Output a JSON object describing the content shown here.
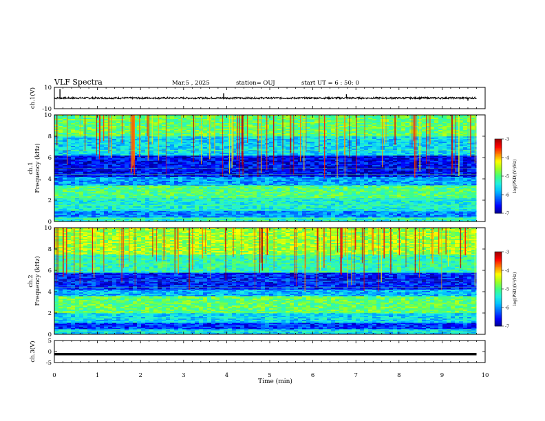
{
  "header": {
    "title": "VLF Spectra",
    "date": "Mar.5 , 2025",
    "station": "station= OUJ",
    "start": "start UT = 6 : 50: 0"
  },
  "colors": {
    "colormap": [
      "#00008f",
      "#0000ff",
      "#0060ff",
      "#00c0ff",
      "#20f0e0",
      "#40ff80",
      "#a0ff20",
      "#ffff00",
      "#ff8000",
      "#ff0000",
      "#a00000"
    ],
    "trace": "#000000",
    "background": "#ffffff"
  },
  "chart_data": [
    {
      "name": "ch1-waveform",
      "type": "line",
      "ylabel": "ch.1(V)",
      "ylim": [
        -10,
        10
      ],
      "y_ticklabels": [
        "10",
        "-10"
      ],
      "xlim": [
        0,
        10
      ],
      "baseline": 0,
      "x": [
        0.0,
        0.13,
        0.4,
        1.0,
        1.6,
        2.2,
        2.8,
        3.4,
        3.93,
        4.2,
        4.8,
        5.4,
        6.0,
        6.6,
        6.78,
        7.2,
        7.8,
        8.4,
        9.0,
        9.6,
        9.8
      ],
      "y": [
        0.0,
        8.5,
        -1.0,
        0.5,
        -0.8,
        0.6,
        -0.5,
        0.7,
        4.5,
        -0.6,
        0.5,
        -0.7,
        0.6,
        -0.4,
        3.5,
        0.5,
        -0.6,
        0.4,
        -0.5,
        -2.5,
        0.0
      ]
    },
    {
      "name": "ch1-spectrogram",
      "type": "heatmap",
      "ylabel": "ch.1\nFrequency (kHz)",
      "ylim": [
        0,
        10
      ],
      "xlim": [
        0,
        9.8
      ],
      "y_ticklabels": [
        "0",
        "2",
        "4",
        "6",
        "8",
        "10"
      ],
      "colorbar_label": "log(PSD)(V²/Hz)",
      "colorbar_range": [
        -7,
        -3
      ],
      "colorbar_ticklabels": [
        "-7",
        "-6",
        "-5",
        "-4",
        "-3"
      ],
      "freq_bands_khz": [
        {
          "from": 0,
          "to": 0.4,
          "log_psd": -5.3
        },
        {
          "from": 0.4,
          "to": 1.0,
          "log_psd": -6.0
        },
        {
          "from": 1.0,
          "to": 2.2,
          "log_psd": -5.4
        },
        {
          "from": 2.2,
          "to": 3.4,
          "log_psd": -5.0
        },
        {
          "from": 3.4,
          "to": 4.2,
          "log_psd": -5.9
        },
        {
          "from": 4.2,
          "to": 6.2,
          "log_psd": -6.6
        },
        {
          "from": 6.2,
          "to": 8.0,
          "log_psd": -5.6
        },
        {
          "from": 8.0,
          "to": 10.0,
          "log_psd": -4.9
        }
      ]
    },
    {
      "name": "ch2-spectrogram",
      "type": "heatmap",
      "ylabel": "ch.2\nFrequency (kHz)",
      "ylim": [
        0,
        10
      ],
      "xlim": [
        0,
        9.8
      ],
      "y_ticklabels": [
        "0",
        "2",
        "4",
        "6",
        "8",
        "10"
      ],
      "colorbar_label": "log(PSD)(V²/Hz)",
      "colorbar_range": [
        -7,
        -3
      ],
      "colorbar_ticklabels": [
        "-7",
        "-6",
        "-5",
        "-4",
        "-3"
      ],
      "freq_bands_khz": [
        {
          "from": 0,
          "to": 0.5,
          "log_psd": -5.6
        },
        {
          "from": 0.5,
          "to": 1.1,
          "log_psd": -6.4
        },
        {
          "from": 1.1,
          "to": 2.0,
          "log_psd": -5.6
        },
        {
          "from": 2.0,
          "to": 3.6,
          "log_psd": -4.9
        },
        {
          "from": 3.6,
          "to": 4.2,
          "log_psd": -5.8
        },
        {
          "from": 4.2,
          "to": 5.8,
          "log_psd": -6.5
        },
        {
          "from": 5.8,
          "to": 7.5,
          "log_psd": -5.2
        },
        {
          "from": 7.5,
          "to": 10.0,
          "log_psd": -4.6
        }
      ]
    },
    {
      "name": "ch3-waveform",
      "type": "line",
      "ylabel": "ch.3(V)",
      "ylim": [
        -5,
        5
      ],
      "y_ticklabels": [
        "5",
        "0",
        "-5"
      ],
      "xlim": [
        0,
        10
      ],
      "x": [
        0,
        9.8
      ],
      "y": [
        -1.2,
        -1.2
      ]
    }
  ],
  "x_axis": {
    "label": "Time (min)",
    "range": [
      0,
      10
    ],
    "ticklabels": [
      "0",
      "1",
      "2",
      "3",
      "4",
      "5",
      "6",
      "7",
      "8",
      "9",
      "10"
    ]
  }
}
